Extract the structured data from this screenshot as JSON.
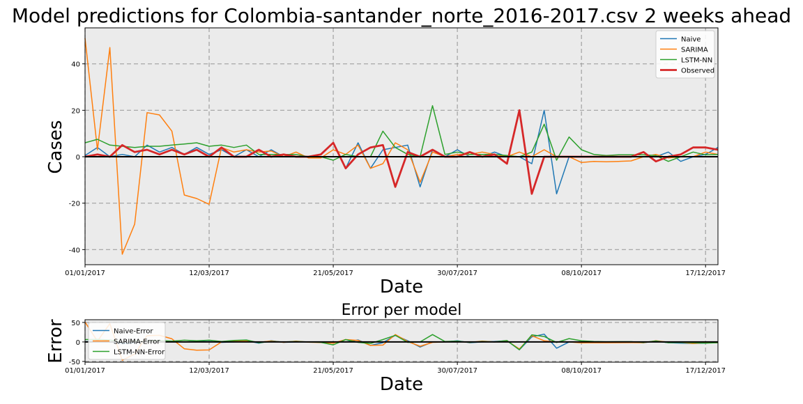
{
  "chart_data": [
    {
      "type": "line",
      "title": "Model predictions for Colombia-santander_norte_2016-2017.csv 2 weeks ahead",
      "xlabel": "Date",
      "ylabel": "Cases",
      "x_tick_labels": [
        "01/01/2017",
        "12/03/2017",
        "21/05/2017",
        "30/07/2017",
        "08/10/2017",
        "17/12/2017"
      ],
      "x_tick_weeks": [
        0,
        10,
        20,
        30,
        40,
        50
      ],
      "xlim": [
        0,
        51
      ],
      "ylim": [
        -46.5,
        55.5
      ],
      "y_ticks": [
        -40,
        -20,
        0,
        20,
        40
      ],
      "grid": true,
      "legend_position": "top-right",
      "series": [
        {
          "name": "Naive",
          "color": "#1f77b4",
          "values": [
            0.5,
            4,
            0,
            1,
            0,
            5,
            2,
            4,
            1,
            4,
            1,
            3,
            0,
            3,
            0,
            3,
            0,
            0,
            0,
            1,
            6,
            -5,
            6,
            -5,
            3,
            4,
            5,
            -13,
            3,
            0,
            3,
            0,
            0,
            2,
            0,
            0,
            -3,
            20,
            -16,
            0,
            0,
            0,
            0,
            0,
            0,
            0,
            0,
            2,
            -2,
            0,
            1,
            4
          ]
        },
        {
          "name": "SARIMA",
          "color": "#ff7f0e",
          "values": [
            51,
            3,
            47,
            -42,
            -29,
            19,
            18,
            11,
            -16.5,
            -18,
            -20.5,
            4,
            2,
            3,
            2,
            2.5,
            0,
            2,
            -0.5,
            -0.5,
            3,
            1,
            5,
            -5,
            -3,
            6,
            3,
            -11,
            2,
            0,
            1,
            1,
            2,
            1,
            0,
            2,
            0,
            3,
            0,
            0,
            -2.5,
            -2,
            -2.2,
            -2,
            -1.8,
            0,
            1,
            -0.5,
            0,
            0,
            2,
            1
          ]
        },
        {
          "name": "LSTM-NN",
          "color": "#2ca02c",
          "values": [
            6,
            7.5,
            5,
            4.5,
            4,
            4.5,
            4.5,
            5,
            5.5,
            6,
            4.5,
            5,
            4,
            5,
            1,
            1,
            1,
            1,
            0,
            0,
            -1.5,
            1,
            0,
            0,
            11,
            4,
            1,
            0,
            22,
            1,
            2,
            1,
            1,
            1,
            0.5,
            0,
            2,
            14,
            -1.5,
            8.5,
            3,
            1,
            0.5,
            0.8,
            0.8,
            0.8,
            0.5,
            -2,
            0,
            2,
            0.8,
            1
          ]
        },
        {
          "name": "Observed",
          "color": "#d62728",
          "values": [
            0,
            1,
            0,
            5,
            2,
            3,
            1,
            3,
            1,
            3,
            0,
            4,
            0,
            0,
            3,
            0,
            1,
            0,
            0,
            1,
            6,
            -5,
            1,
            4,
            5,
            -13,
            2,
            0,
            3,
            0,
            0,
            2,
            0,
            1,
            -3,
            20,
            -16,
            0,
            0,
            0,
            0,
            0,
            0,
            0,
            0,
            2,
            -2,
            0,
            1,
            4,
            4,
            3
          ]
        }
      ]
    },
    {
      "type": "line",
      "title": "Error per model",
      "xlabel": "Date",
      "ylabel": "Error",
      "x_tick_labels": [
        "01/01/2017",
        "12/03/2017",
        "21/05/2017",
        "30/07/2017",
        "08/10/2017",
        "17/12/2017"
      ],
      "x_tick_weeks": [
        0,
        10,
        20,
        30,
        40,
        50
      ],
      "xlim": [
        0,
        51
      ],
      "ylim": [
        -52,
        57
      ],
      "y_ticks": [
        -50,
        0,
        50
      ],
      "grid": true,
      "legend_position": "top-left",
      "series": [
        {
          "name": "Naive-Error",
          "color": "#1f77b4",
          "values": [
            0.5,
            3,
            0,
            -4,
            -2,
            2,
            1,
            1,
            0,
            1,
            1,
            -1,
            0,
            3,
            -3,
            3,
            -1,
            0,
            0,
            0,
            0,
            0,
            5,
            -9,
            -2,
            17,
            3,
            -13,
            0,
            0,
            3,
            -2,
            0,
            1,
            3,
            -20,
            13,
            20,
            -16,
            0,
            0,
            0,
            0,
            0,
            0,
            -2,
            2,
            -2,
            -3,
            -4,
            -3,
            0
          ]
        },
        {
          "name": "SARIMA-Error",
          "color": "#ff7f0e",
          "values": [
            51,
            2,
            47,
            -47,
            -31,
            16,
            17,
            8,
            -17.5,
            -21,
            -20.5,
            0,
            2,
            3,
            -1,
            2.5,
            -1,
            2,
            -0.5,
            -1.5,
            -3,
            6,
            4,
            -9,
            -8,
            19,
            1,
            -11,
            -1,
            0,
            1,
            -1,
            2,
            0,
            3,
            -18,
            16,
            3,
            0,
            0,
            -2.5,
            -2,
            -2.2,
            -2,
            -1.8,
            -2,
            3,
            -0.5,
            -1,
            -4,
            -2,
            -2
          ]
        },
        {
          "name": "LSTM-NN-Error",
          "color": "#2ca02c",
          "values": [
            6,
            6.5,
            5,
            -0.5,
            2,
            1.5,
            3.5,
            2,
            4.5,
            3,
            4.5,
            1,
            4,
            5,
            -2,
            1,
            0,
            1,
            0,
            -1,
            -7.5,
            6,
            -1,
            -4,
            6,
            17,
            -1,
            0,
            19,
            1,
            2,
            -1,
            1,
            0,
            3.5,
            -20,
            18,
            14,
            -1.5,
            8.5,
            3,
            1,
            0.5,
            0.8,
            0.8,
            -1.2,
            2.5,
            -2,
            -1,
            -2,
            -3,
            -2
          ]
        }
      ]
    }
  ]
}
